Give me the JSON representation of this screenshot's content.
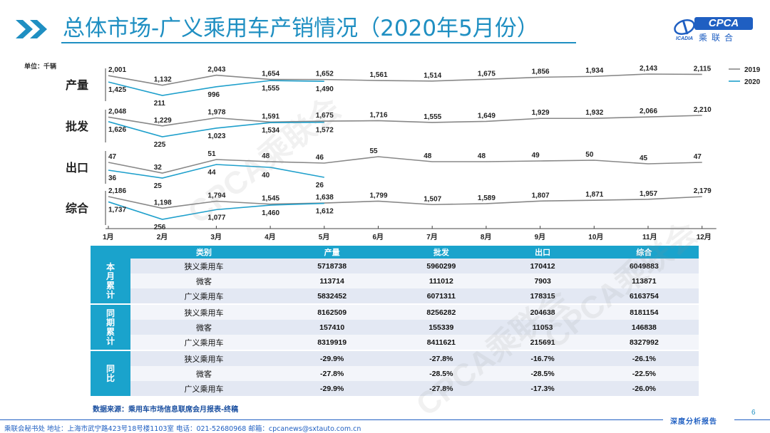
{
  "header": {
    "title": "总体市场-广义乘用车产销情况（2020年5月份）",
    "logo_text": "CPCA",
    "logo_sub": "乘联合",
    "logo_small": "ICADIA"
  },
  "unit_label": "单位：千辆",
  "watermark_text": "CPCA乘联会",
  "colors": {
    "y2019": "#888888",
    "y2020": "#1fa0cc",
    "accent": "#1aa3cc",
    "title": "#1f8fc2"
  },
  "chart_data": {
    "type": "line",
    "categories": [
      "1月",
      "2月",
      "3月",
      "4月",
      "5月",
      "6月",
      "7月",
      "8月",
      "9月",
      "10月",
      "11月",
      "12月"
    ],
    "legend": [
      "2019",
      "2020"
    ],
    "legend_position": "top-right",
    "panels": [
      {
        "label": "产量",
        "series": [
          {
            "name": "2019",
            "values": [
              2001,
              1132,
              2043,
              1654,
              1652,
              1561,
              1514,
              1675,
              1856,
              1934,
              2143,
              2115
            ]
          },
          {
            "name": "2020",
            "values": [
              1425,
              211,
              996,
              1555,
              1490,
              null,
              null,
              null,
              null,
              null,
              null,
              null
            ]
          }
        ],
        "labels": {
          "2019": [
            "2,001",
            "1,132",
            "2,043",
            "1,654",
            "1,652",
            "1,561",
            "1,514",
            "1,675",
            "1,856",
            "1,934",
            "2,143",
            "2,115"
          ],
          "2020": [
            "1,425",
            "211",
            "996",
            "1,555",
            "1,490"
          ]
        }
      },
      {
        "label": "批发",
        "series": [
          {
            "name": "2019",
            "values": [
              2048,
              1229,
              1978,
              1591,
              1675,
              1716,
              1555,
              1649,
              1929,
              1932,
              2066,
              2210
            ]
          },
          {
            "name": "2020",
            "values": [
              1626,
              225,
              1023,
              1534,
              1572,
              null,
              null,
              null,
              null,
              null,
              null,
              null
            ]
          }
        ],
        "labels": {
          "2019": [
            "2,048",
            "1,229",
            "1,978",
            "1,591",
            "1,675",
            "1,716",
            "1,555",
            "1,649",
            "1,929",
            "1,932",
            "2,066",
            "2,210"
          ],
          "2020": [
            "1,626",
            "225",
            "1,023",
            "1,534",
            "1,572"
          ]
        }
      },
      {
        "label": "出口",
        "series": [
          {
            "name": "2019",
            "values": [
              47,
              32,
              51,
              48,
              46,
              55,
              48,
              48,
              49,
              50,
              45,
              47
            ]
          },
          {
            "name": "2020",
            "values": [
              36,
              25,
              44,
              40,
              26,
              null,
              null,
              null,
              null,
              null,
              null,
              null
            ]
          }
        ],
        "labels": {
          "2019": [
            "47",
            "32",
            "51",
            "48",
            "46",
            "55",
            "48",
            "48",
            "49",
            "50",
            "45",
            "47"
          ],
          "2020": [
            "36",
            "25",
            "44",
            "40",
            "26"
          ]
        }
      },
      {
        "label": "综合",
        "series": [
          {
            "name": "2019",
            "values": [
              2186,
              1198,
              1794,
              1545,
              1638,
              1799,
              1507,
              1589,
              1807,
              1871,
              1957,
              2179
            ]
          },
          {
            "name": "2020",
            "values": [
              1737,
              256,
              1077,
              1460,
              1612,
              null,
              null,
              null,
              null,
              null,
              null,
              null
            ]
          }
        ],
        "labels": {
          "2019": [
            "2,186",
            "1,198",
            "1,794",
            "1,545",
            "1,638",
            "1,799",
            "1,507",
            "1,589",
            "1,807",
            "1,871",
            "1,957",
            "2,179"
          ],
          "2020": [
            "1,737",
            "256",
            "1,077",
            "1,460",
            "1,612"
          ]
        }
      }
    ]
  },
  "table": {
    "headers": [
      "类别",
      "产量",
      "批发",
      "出口",
      "综合"
    ],
    "groups": [
      {
        "name": "本月累计",
        "rows": [
          [
            "狭义乘用车",
            "5718738",
            "5960299",
            "170412",
            "6049883"
          ],
          [
            "微客",
            "113714",
            "111012",
            "7903",
            "113871"
          ],
          [
            "广义乘用车",
            "5832452",
            "6071311",
            "178315",
            "6163754"
          ]
        ]
      },
      {
        "name": "同期累计",
        "rows": [
          [
            "狭义乘用车",
            "8162509",
            "8256282",
            "204638",
            "8181154"
          ],
          [
            "微客",
            "157410",
            "155339",
            "11053",
            "146838"
          ],
          [
            "广义乘用车",
            "8319919",
            "8411621",
            "215691",
            "8327992"
          ]
        ]
      },
      {
        "name": "同比",
        "rows": [
          [
            "狭义乘用车",
            "-29.9%",
            "-27.8%",
            "-16.7%",
            "-26.1%"
          ],
          [
            "微客",
            "-27.8%",
            "-28.5%",
            "-28.5%",
            "-22.5%"
          ],
          [
            "广义乘用车",
            "-29.9%",
            "-27.8%",
            "-17.3%",
            "-26.0%"
          ]
        ]
      }
    ]
  },
  "source": "数据来源：乘用车市场信息联席会月报表-终稿",
  "page_number": "6",
  "report_tag": "深度分析报告",
  "footer": "乘联会秘书处   地址：上海市武宁路423号18号楼1103室   电话：021-52680968   邮箱：cpcanews@sxtauto.com.cn"
}
